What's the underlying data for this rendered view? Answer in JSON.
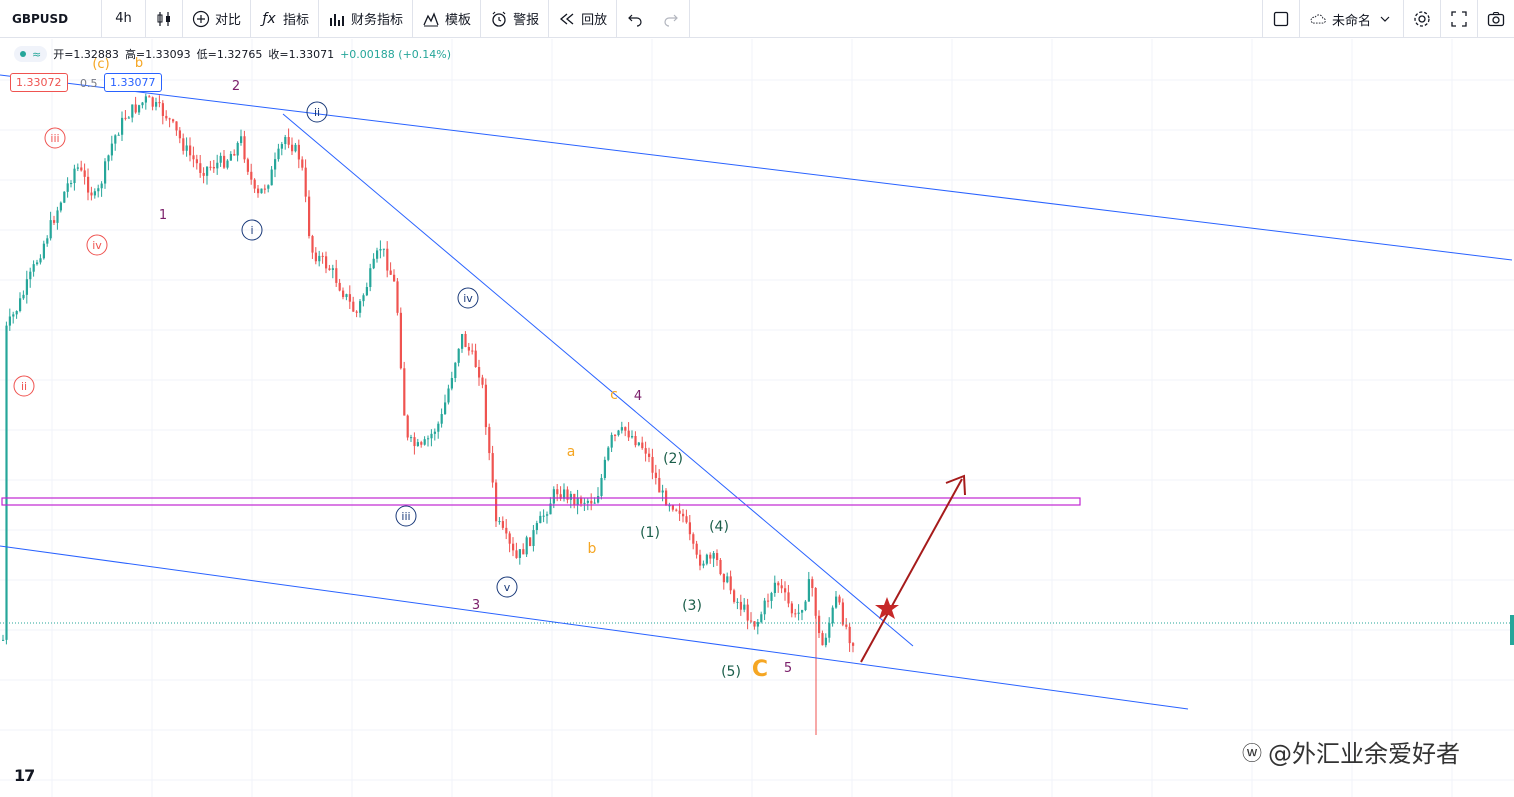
{
  "toolbar": {
    "symbol": "GBPUSD",
    "interval": "4h",
    "compare_label": "对比",
    "indicators_label": "指标",
    "financials_label": "财务指标",
    "templates_label": "模板",
    "alert_label": "警报",
    "replay_label": "回放",
    "layout_name": "未命名"
  },
  "legend": {
    "open": "开=1.32883",
    "high": "高=1.33093",
    "low": "低=1.32765",
    "close": "收=1.33071",
    "change": "+0.00188 (+0.14%)",
    "badge_icon": "≈"
  },
  "price_tags": {
    "current": "1.33072",
    "half": "0.5",
    "last": "1.33077"
  },
  "wave_labels": {
    "l_ii_left": "ii",
    "l_iii_left": "iii",
    "l_iv_left": "iv",
    "l_c_top": "(c)",
    "l_b_top": "b",
    "l_1": "1",
    "l_2": "2",
    "l_3": "3",
    "l_4": "4",
    "l_5": "5",
    "l_i": "i",
    "l_ii": "ii",
    "l_iii": "iii",
    "l_iv": "iv",
    "l_v": "v",
    "l_a": "a",
    "l_b": "b",
    "l_c": "c",
    "l_C": "C",
    "l_p1": "(1)",
    "l_p2": "(2)",
    "l_p3": "(3)",
    "l_p4": "(4)",
    "l_p5": "(5)"
  },
  "colors": {
    "up": "#26a69a",
    "down": "#ef5350",
    "trend": "#2962ff",
    "zone": "#c026d3",
    "arrow": "#a61b1b",
    "orange": "#f5a623",
    "purple": "#7b1f6a",
    "green": "#1b5e4a"
  },
  "logo_text": "17",
  "watermark": "@外汇业余爱好者"
}
